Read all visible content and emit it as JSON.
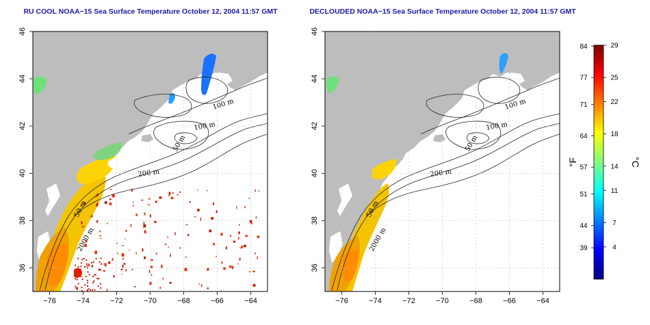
{
  "panels": [
    {
      "id": "ru-cool",
      "title": "RU COOL NOAA−15 Sea Surface Temperature October 12, 2004 11:57 GMT",
      "variant": "raw"
    },
    {
      "id": "declouded",
      "title": "DECLOUDED NOAA−15 Sea Surface Temperature October 12, 2004 11:57 GMT",
      "variant": "declouded"
    }
  ],
  "axes": {
    "lon_ticks": [
      "−76",
      "−74",
      "−72",
      "−70",
      "−68",
      "−66",
      "−64"
    ],
    "lat_ticks": [
      "36",
      "38",
      "40",
      "42",
      "44",
      "46"
    ],
    "lon_range": [
      -77,
      -63
    ],
    "lat_range": [
      35,
      46
    ]
  },
  "contour_labels": [
    "100 m",
    "100 m",
    "50 m",
    "200 m",
    "50 m",
    "2000 m"
  ],
  "colorbar": {
    "fahrenheit_label": "°F",
    "celsius_label": "°C",
    "fahrenheit_ticks": [
      "84",
      "77",
      "71",
      "64",
      "57",
      "51",
      "44",
      "39"
    ],
    "celsius_ticks": [
      "29",
      "25",
      "22",
      "18",
      "14",
      "11",
      "7",
      "4"
    ],
    "range_c": [
      0,
      29
    ],
    "colors": [
      "#00007f",
      "#0000ff",
      "#007fff",
      "#00ffff",
      "#7fff7f",
      "#ffff00",
      "#ff7f00",
      "#ff0000",
      "#7f0000"
    ]
  },
  "colors": {
    "land": "#bdbdbd",
    "ocean": "#ffffff",
    "title": "#1a1aa8",
    "grid": "#bbbbbb"
  }
}
